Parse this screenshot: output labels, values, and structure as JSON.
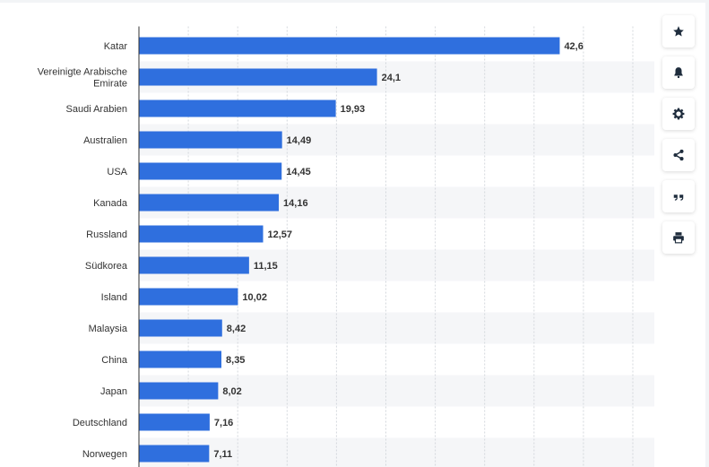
{
  "chart_data": {
    "type": "bar",
    "orientation": "horizontal",
    "categories": [
      [
        "Katar"
      ],
      [
        "Vereinigte Arabische",
        "Emirate"
      ],
      [
        "Saudi Arabien"
      ],
      [
        "Australien"
      ],
      [
        "USA"
      ],
      [
        "Kanada"
      ],
      [
        "Russland"
      ],
      [
        "Südkorea"
      ],
      [
        "Island"
      ],
      [
        "Malaysia"
      ],
      [
        "China"
      ],
      [
        "Japan"
      ],
      [
        "Deutschland"
      ],
      [
        "Norwegen"
      ]
    ],
    "values": [
      42.6,
      24.1,
      19.93,
      14.49,
      14.45,
      14.16,
      12.57,
      11.15,
      10.02,
      8.42,
      8.35,
      8.02,
      7.16,
      7.11
    ],
    "value_labels": [
      "42,6",
      "24,1",
      "19,93",
      "14,49",
      "14,45",
      "14,16",
      "12,57",
      "11,15",
      "10,02",
      "8,42",
      "8,35",
      "8,02",
      "7,16",
      "7,11"
    ],
    "xlim": [
      0,
      50
    ],
    "grid": true,
    "bar_color": "#2f6fde"
  },
  "toolbar": [
    {
      "name": "favorite-button",
      "icon": "star-icon"
    },
    {
      "name": "notification-button",
      "icon": "bell-icon"
    },
    {
      "name": "settings-button",
      "icon": "gear-icon"
    },
    {
      "name": "share-button",
      "icon": "share-icon"
    },
    {
      "name": "cite-button",
      "icon": "quote-icon"
    },
    {
      "name": "print-button",
      "icon": "print-icon"
    }
  ]
}
